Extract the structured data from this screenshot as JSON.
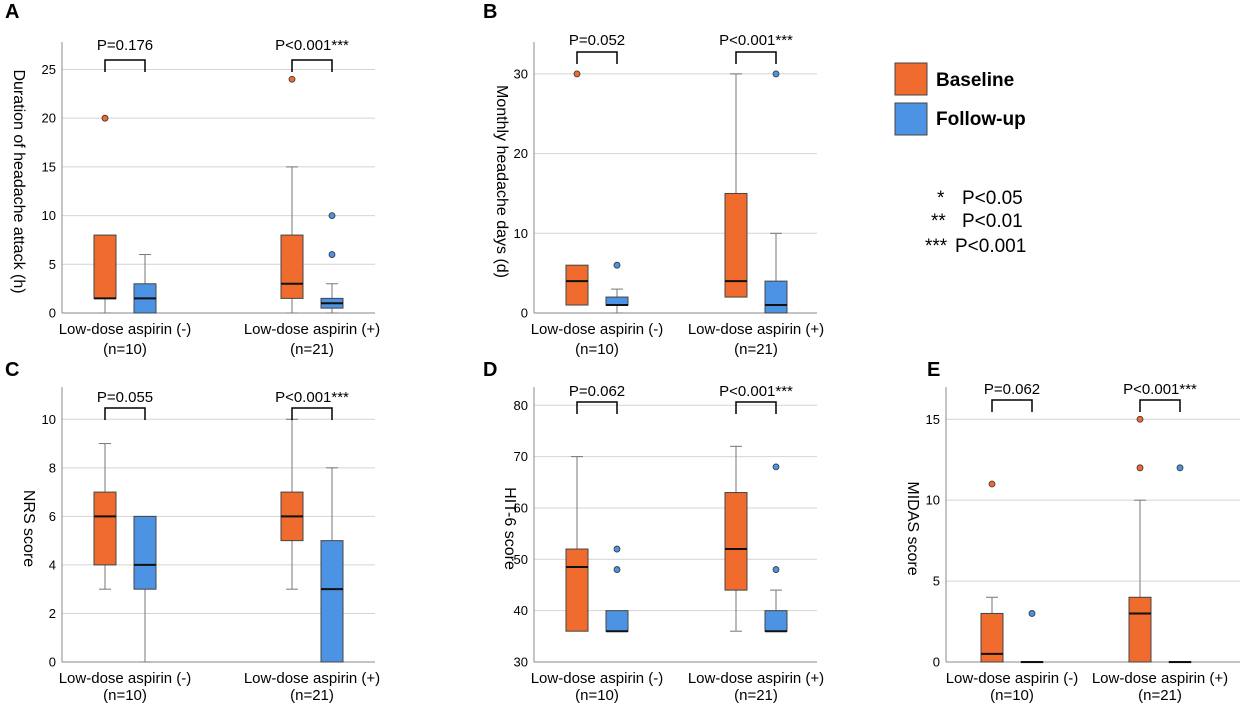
{
  "colors": {
    "baseline": "#ef6b2e",
    "followup": "#4d93e3"
  },
  "legend": {
    "entries": [
      {
        "key": "baseline",
        "label": "Baseline"
      },
      {
        "key": "followup",
        "label": "Follow-up"
      }
    ],
    "significance": [
      {
        "stars": "*",
        "text": "P<0.05"
      },
      {
        "stars": "**",
        "text": "P<0.01"
      },
      {
        "stars": "***",
        "text": "P<0.001"
      }
    ]
  },
  "chart_data": [
    {
      "panel": "A",
      "type": "boxplot",
      "ylabel": "Duration of headache attack (h)",
      "ylim": [
        0,
        27
      ],
      "yticks": [
        0,
        5,
        10,
        15,
        20,
        25
      ],
      "groups": [
        {
          "label": "Low-dose aspirin (-)",
          "n": "(n=10)",
          "p": "P=0.176",
          "baseline": {
            "min": 0,
            "q1": 1.5,
            "median": 1.5,
            "q3": 8,
            "max": 8,
            "outliers": [
              20
            ]
          },
          "followup": {
            "min": 0,
            "q1": 0,
            "median": 1.5,
            "q3": 3,
            "max": 6,
            "outliers": []
          }
        },
        {
          "label": "Low-dose aspirin (+)",
          "n": "(n=21)",
          "p": "P<0.001***",
          "baseline": {
            "min": 0,
            "q1": 1.5,
            "median": 3,
            "q3": 8,
            "max": 15,
            "outliers": [
              24
            ]
          },
          "followup": {
            "min": 0,
            "q1": 0.5,
            "median": 1,
            "q3": 1.5,
            "max": 3,
            "outliers": [
              6,
              10
            ]
          }
        }
      ]
    },
    {
      "panel": "B",
      "type": "boxplot",
      "ylabel": "Monthly headache days (d)",
      "ylim": [
        0,
        33
      ],
      "yticks": [
        0,
        10,
        20,
        30
      ],
      "groups": [
        {
          "label": "Low-dose aspirin (-)",
          "n": "(n=10)",
          "p": "P=0.052",
          "baseline": {
            "min": 1,
            "q1": 1,
            "median": 4,
            "q3": 6,
            "max": 6,
            "outliers": [
              30
            ]
          },
          "followup": {
            "min": 0,
            "q1": 1,
            "median": 1,
            "q3": 2,
            "max": 3,
            "outliers": [
              6
            ]
          }
        },
        {
          "label": "Low-dose aspirin (+)",
          "n": "(n=21)",
          "p": "P<0.001***",
          "baseline": {
            "min": 2,
            "q1": 2,
            "median": 4,
            "q3": 15,
            "max": 30,
            "outliers": []
          },
          "followup": {
            "min": 0,
            "q1": 0,
            "median": 1,
            "q3": 4,
            "max": 10,
            "outliers": [
              30
            ]
          }
        }
      ]
    },
    {
      "panel": "C",
      "type": "boxplot",
      "ylabel": "NRS score",
      "ylim": [
        0,
        11
      ],
      "yticks": [
        0,
        2,
        4,
        6,
        8,
        10
      ],
      "groups": [
        {
          "label": "Low-dose aspirin (-)",
          "n": "(n=10)",
          "p": "P=0.055",
          "baseline": {
            "min": 3,
            "q1": 4,
            "median": 6,
            "q3": 7,
            "max": 9,
            "outliers": []
          },
          "followup": {
            "min": 0,
            "q1": 3,
            "median": 4,
            "q3": 6,
            "max": 6,
            "outliers": []
          }
        },
        {
          "label": "Low-dose aspirin (+)",
          "n": "(n=21)",
          "p": "P<0.001***",
          "baseline": {
            "min": 3,
            "q1": 5,
            "median": 6,
            "q3": 7,
            "max": 10,
            "outliers": []
          },
          "followup": {
            "min": 0,
            "q1": 0,
            "median": 3,
            "q3": 5,
            "max": 8,
            "outliers": []
          }
        }
      ]
    },
    {
      "panel": "D",
      "type": "boxplot",
      "ylabel": "HIT-6 score",
      "ylim": [
        30,
        82
      ],
      "yticks": [
        30,
        40,
        50,
        60,
        70,
        80
      ],
      "groups": [
        {
          "label": "Low-dose aspirin (-)",
          "n": "(n=10)",
          "p": "P=0.062",
          "baseline": {
            "min": 36,
            "q1": 36,
            "median": 48.5,
            "q3": 52,
            "max": 70,
            "outliers": []
          },
          "followup": {
            "min": 36,
            "q1": 36,
            "median": 36,
            "q3": 40,
            "max": 40,
            "outliers": [
              48,
              52
            ]
          }
        },
        {
          "label": "Low-dose aspirin (+)",
          "n": "(n=21)",
          "p": "P<0.001***",
          "baseline": {
            "min": 36,
            "q1": 44,
            "median": 52,
            "q3": 63,
            "max": 72,
            "outliers": []
          },
          "followup": {
            "min": 36,
            "q1": 36,
            "median": 36,
            "q3": 40,
            "max": 44,
            "outliers": [
              48,
              68
            ]
          }
        }
      ]
    },
    {
      "panel": "E",
      "type": "boxplot",
      "ylabel": "MIDAS score",
      "ylim": [
        0,
        16.5
      ],
      "yticks": [
        0,
        5,
        10,
        15
      ],
      "groups": [
        {
          "label": "Low-dose aspirin (-)",
          "n": "(n=10)",
          "p": "P=0.062",
          "baseline": {
            "min": 0,
            "q1": 0,
            "median": 0.5,
            "q3": 3,
            "max": 4,
            "outliers": [
              11
            ]
          },
          "followup": {
            "min": 0,
            "q1": 0,
            "median": 0,
            "q3": 0,
            "max": 0,
            "outliers": [
              3
            ]
          }
        },
        {
          "label": "Low-dose aspirin (+)",
          "n": "(n=21)",
          "p": "P<0.001***",
          "baseline": {
            "min": 0,
            "q1": 0,
            "median": 3,
            "q3": 4,
            "max": 10,
            "outliers": [
              12,
              15
            ]
          },
          "followup": {
            "min": 0,
            "q1": 0,
            "median": 0,
            "q3": 0,
            "max": 0,
            "outliers": [
              12
            ]
          }
        }
      ]
    }
  ]
}
